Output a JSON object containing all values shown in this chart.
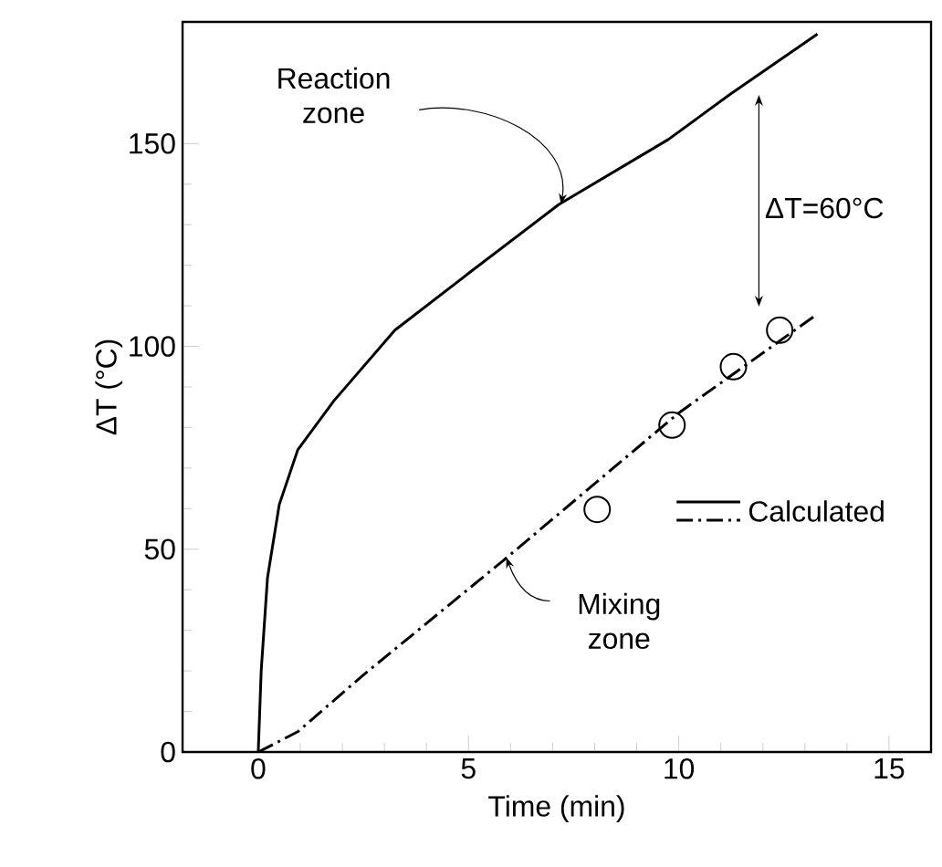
{
  "chart_data": {
    "type": "line",
    "xlabel": "Time (min)",
    "ylabel": "ΔT (°C)",
    "xlim": [
      -1.8,
      16
    ],
    "ylim": [
      0,
      180
    ],
    "xticks": [
      0,
      5,
      10,
      15
    ],
    "yticks": [
      0,
      50,
      100,
      150
    ],
    "grid": false,
    "legend": "right",
    "series": [
      {
        "name": "Calculated",
        "color": "#000000",
        "line_style": "solid",
        "x": [
          0,
          0.07,
          0.22,
          0.5,
          0.94,
          1.8,
          3.25,
          5,
          7.15,
          9.75,
          11.2,
          13.3
        ],
        "values": [
          0,
          20,
          43,
          61,
          74.5,
          86.6,
          104,
          118,
          135,
          151,
          162,
          177
        ]
      },
      {
        "color": "#000000",
        "line_style": "dashdot",
        "x": [
          0,
          0.94,
          2.5,
          5.85,
          10,
          13.3
        ],
        "values": [
          0,
          5,
          19,
          47.4,
          83.6,
          108
        ]
      },
      {
        "type": "scatter",
        "marker": "circle",
        "color": "#000000",
        "x": [
          8.06,
          9.84,
          11.3,
          12.4
        ],
        "values": [
          59.8,
          80.6,
          95,
          104
        ]
      }
    ],
    "annotations": [
      {
        "text": "Reaction zone",
        "x": 7.2,
        "y": 135
      },
      {
        "text": "Mixing zone",
        "x": 5.9,
        "y": 48
      },
      "ΔT=60°C"
    ]
  }
}
